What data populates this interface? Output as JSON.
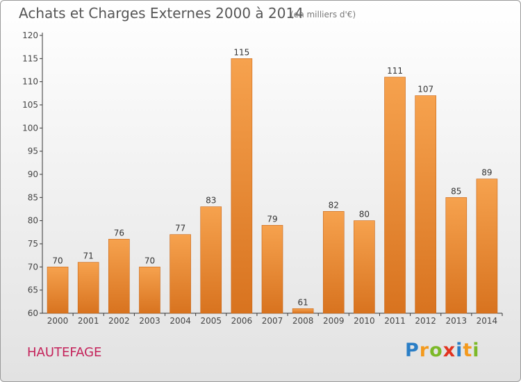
{
  "header": {
    "title": "Achats et Charges Externes 2000 à 2014",
    "subtitle": "(en milliers d'€)"
  },
  "footer": {
    "commune": "HAUTEFAGE",
    "logo_letters": [
      "P",
      "r",
      "o",
      "x",
      "i",
      "t",
      "i"
    ]
  },
  "colors": {
    "bar_light": "#f6a24e",
    "bar_dark": "#d8731f",
    "bar_edge": "#c86516",
    "commune": "#c4225a",
    "logo_letters": [
      "#2a7ec6",
      "#f39a1e",
      "#7cb928",
      "#e2331f",
      "#2a7ec6",
      "#f39a1e",
      "#7cb928"
    ]
  },
  "chart_data": {
    "type": "bar",
    "categories": [
      "2000",
      "2001",
      "2002",
      "2003",
      "2004",
      "2005",
      "2006",
      "2007",
      "2008",
      "2009",
      "2010",
      "2011",
      "2012",
      "2013",
      "2014"
    ],
    "values": [
      70,
      71,
      76,
      70,
      77,
      83,
      115,
      79,
      61,
      82,
      80,
      111,
      107,
      85,
      89
    ],
    "title": "Achats et Charges Externes 2000 à 2014",
    "subtitle": "(en milliers d'€)",
    "xlabel": "",
    "ylabel": "",
    "ylim": [
      60,
      120
    ],
    "yticks": [
      60,
      65,
      70,
      75,
      80,
      85,
      90,
      95,
      100,
      105,
      110,
      115,
      120
    ],
    "grid": false,
    "data_labels": true
  }
}
